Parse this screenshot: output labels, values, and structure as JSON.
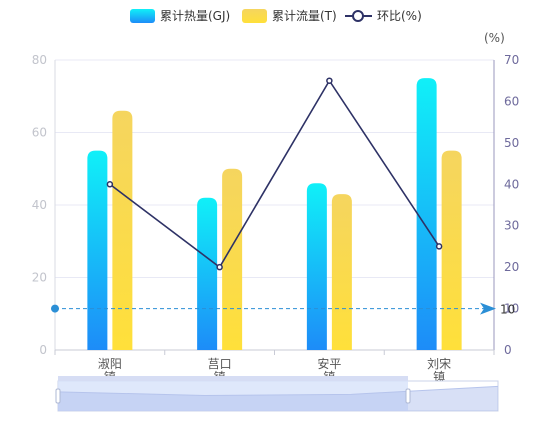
{
  "legend": {
    "heat": "累计热量(GJ)",
    "flow": "累计流量(T)",
    "ratio": "环比(%)"
  },
  "right_axis_unit": "(%)",
  "markline_label": "10",
  "colors": {
    "heat_top": "#10F0F8",
    "heat_bottom": "#1D8CF8",
    "flow_top": "#F5D55F",
    "flow_bottom": "#FFE03A",
    "line": "#2E3266",
    "markline": "#2B8FD6",
    "axis_text_left": "#C2C4CC",
    "axis_text_right": "#6E6A9C",
    "grid": "#E8E9F5",
    "slider_fill": "#D7E2FA",
    "slider_border": "#CBD3E8"
  },
  "chart_data": {
    "type": "bar",
    "categories": [
      "淑阳\n镇",
      "莒口\n镇",
      "安平\n镇",
      "刘宋\n镇"
    ],
    "series": [
      {
        "name": "累计热量(GJ)",
        "kind": "bar",
        "axis": "left",
        "values": [
          55,
          42,
          46,
          75
        ]
      },
      {
        "name": "累计流量(T)",
        "kind": "bar",
        "axis": "left",
        "values": [
          66,
          50,
          43,
          55
        ]
      },
      {
        "name": "环比(%)",
        "kind": "line",
        "axis": "right",
        "values": [
          40,
          20,
          65,
          25
        ]
      }
    ],
    "y_left": {
      "min": 0,
      "max": 80,
      "ticks": [
        0,
        20,
        40,
        60,
        80
      ]
    },
    "y_right": {
      "min": 0,
      "max": 70,
      "ticks": [
        0,
        10,
        20,
        30,
        40,
        50,
        60,
        70
      ],
      "label": "(%)"
    },
    "mark_line": {
      "axis": "right",
      "value": 10
    },
    "legend_position": "top-center",
    "grid": true,
    "data_zoom": {
      "start_category": 0,
      "end_category": 3
    }
  }
}
